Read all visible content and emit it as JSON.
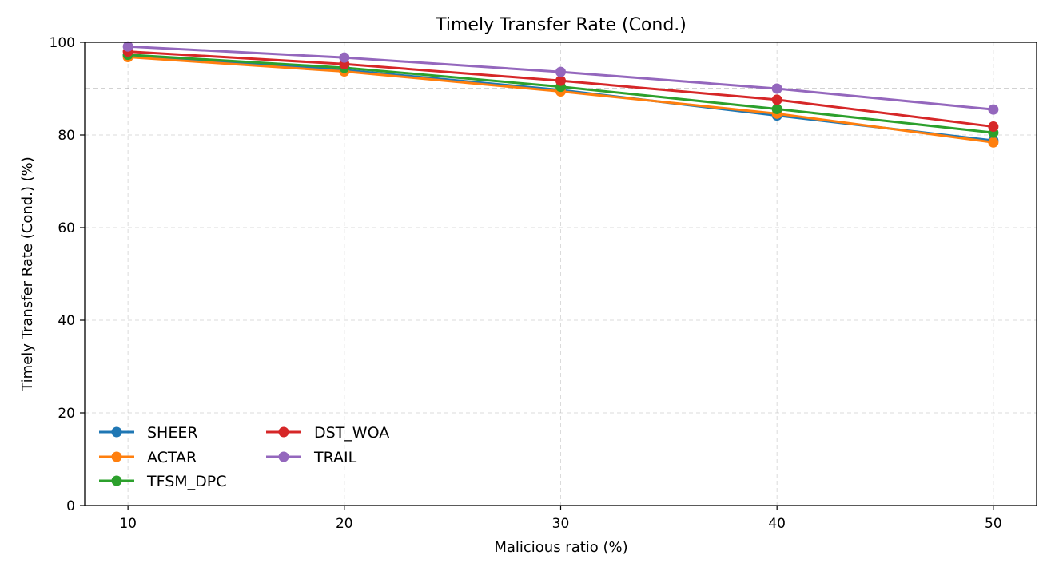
{
  "chart_data": {
    "type": "line",
    "title": "Timely Transfer Rate (Cond.)",
    "xlabel": "Malicious ratio (%)",
    "ylabel": "Timely Transfer Rate (Cond.) (%)",
    "x": [
      10,
      20,
      30,
      40,
      50
    ],
    "xlim": [
      8,
      52
    ],
    "ylim": [
      0,
      100
    ],
    "yticks": [
      0,
      20,
      40,
      60,
      80,
      100
    ],
    "xticks": [
      10,
      20,
      30,
      40,
      50
    ],
    "grid": true,
    "reference_line": 90,
    "legend_position": "lower-left",
    "series": [
      {
        "name": "SHEER",
        "color": "#1f77b4",
        "values": [
          97.2,
          94.0,
          89.7,
          84.2,
          78.8
        ]
      },
      {
        "name": "ACTAR",
        "color": "#ff7f0e",
        "values": [
          96.8,
          93.7,
          89.4,
          84.6,
          78.4
        ]
      },
      {
        "name": "TFSM_DPC",
        "color": "#2ca02c",
        "values": [
          97.3,
          94.5,
          90.4,
          85.6,
          80.5
        ]
      },
      {
        "name": "DST_WOA",
        "color": "#d62728",
        "values": [
          98.0,
          95.3,
          91.7,
          87.6,
          81.8
        ]
      },
      {
        "name": "TRAIL",
        "color": "#9467bd",
        "values": [
          99.1,
          96.7,
          93.6,
          90.0,
          85.5
        ]
      }
    ]
  }
}
